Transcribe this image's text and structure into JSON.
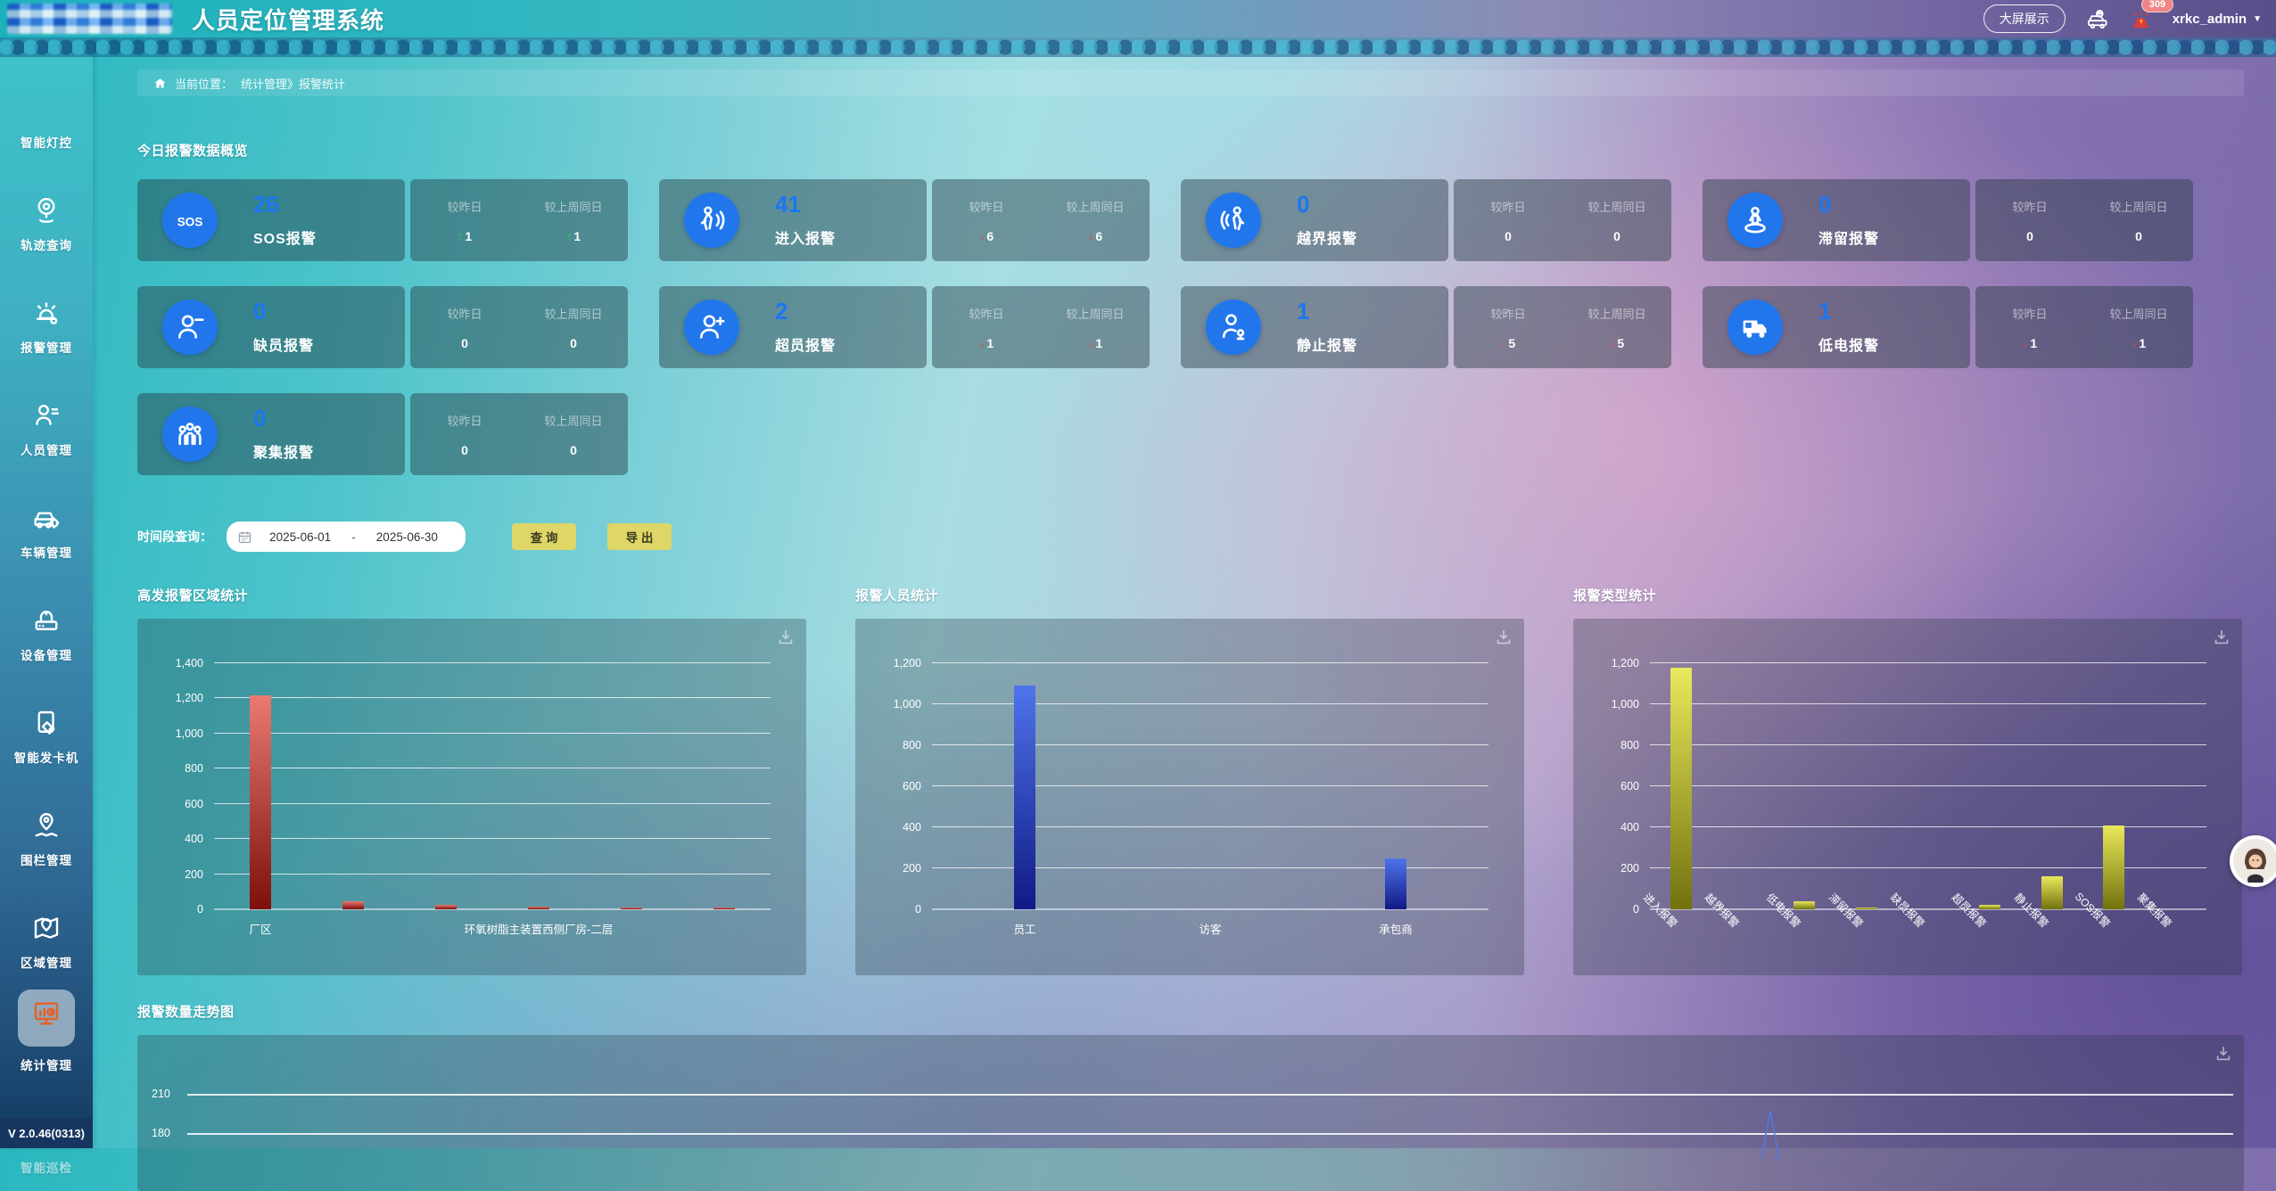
{
  "header": {
    "title": "人员定位管理系统",
    "big_screen_button": "大屏展示",
    "icons": [
      "vehicle-monitor-icon",
      "siren-notification-icon"
    ],
    "badge_count": "309",
    "username": "xrkc_admin"
  },
  "breadcrumb": {
    "prefix": "当前位置：",
    "path": "统计管理》报警统计"
  },
  "sidebar": {
    "items": [
      {
        "key": "light-control",
        "label": "智能灯控",
        "icon": "",
        "active": false
      },
      {
        "key": "trajectory",
        "label": "轨迹查询",
        "icon": "trajectory-icon",
        "active": false
      },
      {
        "key": "alarm",
        "label": "报警管理",
        "icon": "alarm-siren-icon",
        "active": false
      },
      {
        "key": "personnel",
        "label": "人员管理",
        "icon": "person-list-icon",
        "active": false
      },
      {
        "key": "vehicle",
        "label": "车辆管理",
        "icon": "vehicle-gear-icon",
        "active": false
      },
      {
        "key": "device",
        "label": "设备管理",
        "icon": "device-icon",
        "active": false
      },
      {
        "key": "card-dispenser",
        "label": "智能发卡机",
        "icon": "card-dispenser-icon",
        "active": false
      },
      {
        "key": "fence",
        "label": "围栏管理",
        "icon": "map-pin-icon",
        "active": false
      },
      {
        "key": "region",
        "label": "区域管理",
        "icon": "region-map-icon",
        "active": false
      },
      {
        "key": "statistics",
        "label": "统计管理",
        "icon": "statistics-monitor-icon",
        "active": true
      },
      {
        "key": "smart-inspect",
        "label": "智能巡检",
        "icon": "waves-search-icon",
        "active": false,
        "truncated": true
      }
    ],
    "version": "V 2.0.46(0313)"
  },
  "overview": {
    "title": "今日报警数据概览",
    "compare_labels": {
      "yesterday": "较昨日",
      "last_week": "较上周同日"
    },
    "cards": [
      {
        "key": "sos",
        "label": "SOS报警",
        "value": "26",
        "icon": "sos-icon",
        "yesterday": {
          "value": "1",
          "trend": "up"
        },
        "last_week": {
          "value": "1",
          "trend": "up"
        }
      },
      {
        "key": "enter",
        "label": "进入报警",
        "value": "41",
        "icon": "enter-alarm-icon",
        "yesterday": {
          "value": "6",
          "trend": "down"
        },
        "last_week": {
          "value": "6",
          "trend": "down"
        }
      },
      {
        "key": "crossborder",
        "label": "越界报警",
        "value": "0",
        "icon": "cross-border-icon",
        "yesterday": {
          "value": "0",
          "trend": "flat"
        },
        "last_week": {
          "value": "0",
          "trend": "flat"
        }
      },
      {
        "key": "linger",
        "label": "滞留报警",
        "value": "0",
        "icon": "linger-icon",
        "yesterday": {
          "value": "0",
          "trend": "flat"
        },
        "last_week": {
          "value": "0",
          "trend": "flat"
        }
      },
      {
        "key": "understaff",
        "label": "缺员报警",
        "value": "0",
        "icon": "person-minus-icon",
        "yesterday": {
          "value": "0",
          "trend": "flat"
        },
        "last_week": {
          "value": "0",
          "trend": "flat"
        }
      },
      {
        "key": "overstaff",
        "label": "超员报警",
        "value": "2",
        "icon": "person-plus-icon",
        "yesterday": {
          "value": "1",
          "trend": "down"
        },
        "last_week": {
          "value": "1",
          "trend": "down"
        }
      },
      {
        "key": "still",
        "label": "静止报警",
        "value": "1",
        "icon": "person-still-icon",
        "yesterday": {
          "value": "5",
          "trend": "down"
        },
        "last_week": {
          "value": "5",
          "trend": "down"
        }
      },
      {
        "key": "lowbattery",
        "label": "低电报警",
        "value": "1",
        "icon": "truck-icon",
        "yesterday": {
          "value": "1",
          "trend": "down"
        },
        "last_week": {
          "value": "1",
          "trend": "down"
        }
      },
      {
        "key": "gather",
        "label": "聚集报警",
        "value": "0",
        "icon": "people-group-icon",
        "yesterday": {
          "value": "0",
          "trend": "flat"
        },
        "last_week": {
          "value": "0",
          "trend": "flat"
        }
      }
    ]
  },
  "query": {
    "label": "时间段查询：",
    "start_date": "2025-06-01",
    "separator": "-",
    "end_date": "2025-06-30",
    "search_button": "查 询",
    "export_button": "导 出",
    "calendar_icon": "calendar-icon"
  },
  "chart_data": [
    {
      "type": "bar",
      "title": "高发报警区域统计",
      "categories": [
        "厂区",
        "",
        "",
        "环氧树脂主装置西侧厂房-二层",
        "",
        ""
      ],
      "values": [
        1220,
        45,
        25,
        15,
        10,
        10
      ],
      "ylim": [
        0,
        1400
      ],
      "yticks": [
        0,
        200,
        400,
        600,
        800,
        1000,
        1200,
        1400
      ],
      "grid": true,
      "legend": "none",
      "bar_color_top": "#ea7a72",
      "bar_color_bottom": "#7d100c",
      "label_rotate": false,
      "toolbox": "download-icon"
    },
    {
      "type": "bar",
      "title": "报警人员统计",
      "categories": [
        "员工",
        "访客",
        "承包商"
      ],
      "values": [
        1090,
        0,
        250
      ],
      "ylim": [
        0,
        1200
      ],
      "yticks": [
        0,
        200,
        400,
        600,
        800,
        1000,
        1200
      ],
      "grid": true,
      "legend": "none",
      "bar_color_top": "#4f74ea",
      "bar_color_bottom": "#101a86",
      "label_rotate": false,
      "toolbox": "download-icon"
    },
    {
      "type": "bar",
      "title": "报警类型统计",
      "categories": [
        "进入报警",
        "越界报警",
        "低电报警",
        "滞留报警",
        "缺员报警",
        "超员报警",
        "静止报警",
        "SOS报警",
        "聚集报警"
      ],
      "values": [
        1180,
        0,
        40,
        10,
        0,
        20,
        160,
        410,
        0
      ],
      "ylim": [
        0,
        1200
      ],
      "yticks": [
        0,
        200,
        400,
        600,
        800,
        1000,
        1200
      ],
      "grid": true,
      "legend": "none",
      "bar_color_top": "#e9e95c",
      "bar_color_bottom": "#72720e",
      "label_rotate": true,
      "toolbox": "download-icon"
    },
    {
      "type": "line",
      "title": "报警数量走势图",
      "visible_yticks": [
        210,
        180
      ],
      "series": [
        {
          "name": "报警数量",
          "note": "single visible spike, chart clipped at page bottom",
          "spike_x_fraction": 0.775,
          "spike_peak_value": 196,
          "spike_base_value": 174
        }
      ],
      "line_color": "#5577e0",
      "toolbox": "download-icon"
    }
  ],
  "floating": {
    "avatar_icon": "assistant-avatar-icon"
  }
}
